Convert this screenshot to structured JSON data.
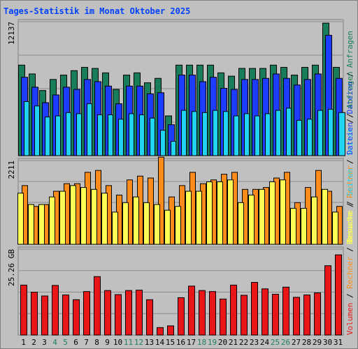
{
  "title": "Tages-Statistik im Monat Oktober 2025",
  "colors": {
    "background": "#c0c0c0",
    "title": "#0040ff",
    "anfragen": "#1a7d5a",
    "dateien": "#1e3cff",
    "seiten": "#22d4f4",
    "besuche": "#ffff55",
    "rechner": "#ff8c1a",
    "volumen": "#e81616",
    "weekday_label": "#000000",
    "weekend_label": "#208060"
  },
  "chart_data": [
    {
      "type": "bar",
      "panel": "top",
      "ymax_label": "12137",
      "ylim": [
        0,
        12137
      ],
      "right_labels": [
        {
          "text": "Seiten",
          "color": "#22d4f4"
        },
        {
          "text": " / ",
          "color": "#000000"
        },
        {
          "text": "Dateien",
          "color": "#1e3cff"
        },
        {
          "text": " / ",
          "color": "#000000"
        },
        {
          "text": "Anfragen",
          "color": "#1a7d5a"
        }
      ],
      "categories": [
        "1",
        "2",
        "3",
        "4",
        "5",
        "6",
        "7",
        "8",
        "9",
        "10",
        "11",
        "12",
        "13",
        "14",
        "15",
        "16",
        "17",
        "18",
        "19",
        "20",
        "21",
        "22",
        "23",
        "24",
        "25",
        "26",
        "27",
        "28",
        "29",
        "30",
        "31"
      ],
      "weekend": [
        "4",
        "5",
        "11",
        "12",
        "18",
        "19",
        "25",
        "26"
      ],
      "series": [
        {
          "name": "Anfragen",
          "values": [
            8200,
            7400,
            5900,
            6900,
            7300,
            7700,
            8000,
            7900,
            7500,
            6000,
            7300,
            7500,
            6600,
            7000,
            3600,
            8200,
            8200,
            8200,
            8200,
            7500,
            7200,
            7900,
            7900,
            7900,
            8200,
            8000,
            7300,
            8000,
            8200,
            12000,
            8000
          ]
        },
        {
          "name": "Dateien",
          "values": [
            7100,
            6200,
            4800,
            5500,
            6200,
            6000,
            6900,
            6700,
            6300,
            4700,
            6300,
            6300,
            5600,
            5700,
            2800,
            7300,
            7300,
            6700,
            7100,
            6100,
            6000,
            6900,
            6900,
            7000,
            7400,
            7000,
            6400,
            6900,
            7400,
            10900,
            7000
          ]
        },
        {
          "name": "Seiten",
          "values": [
            4900,
            4500,
            3500,
            3600,
            3900,
            3800,
            4700,
            3700,
            3700,
            3300,
            3800,
            3700,
            3400,
            2300,
            1300,
            4100,
            4000,
            3900,
            4100,
            4000,
            3600,
            3800,
            3600,
            3800,
            4100,
            4300,
            3200,
            3300,
            4100,
            4200,
            3900
          ]
        }
      ]
    },
    {
      "type": "bar",
      "panel": "middle",
      "ymax_label": "2211",
      "ylim": [
        0,
        2211
      ],
      "right_labels": [
        {
          "text": "Besuche",
          "color": "#ffff55"
        },
        {
          "text": " / ",
          "color": "#000000"
        },
        {
          "text": "Rechner",
          "color": "#ff8c1a"
        }
      ],
      "categories": [
        "1",
        "2",
        "3",
        "4",
        "5",
        "6",
        "7",
        "8",
        "9",
        "10",
        "11",
        "12",
        "13",
        "14",
        "15",
        "16",
        "17",
        "18",
        "19",
        "20",
        "21",
        "22",
        "23",
        "24",
        "25",
        "26",
        "27",
        "28",
        "29",
        "30",
        "31"
      ],
      "series": [
        {
          "name": "Rechner",
          "values": [
            1550,
            1000,
            1050,
            1400,
            1600,
            1600,
            1900,
            1950,
            1550,
            1300,
            1700,
            1800,
            1750,
            2300,
            1250,
            1550,
            1900,
            1600,
            1700,
            1850,
            1900,
            1450,
            1450,
            1500,
            1750,
            1900,
            1100,
            1500,
            1950,
            1400,
            1000
          ]
        },
        {
          "name": "Besuche",
          "values": [
            1350,
            1050,
            1050,
            1250,
            1400,
            1550,
            1500,
            1450,
            1350,
            850,
            1100,
            1250,
            1100,
            1050,
            900,
            1000,
            1400,
            1400,
            1650,
            1650,
            1700,
            1100,
            1300,
            1450,
            1650,
            1700,
            950,
            950,
            1250,
            1450,
            850
          ]
        }
      ]
    },
    {
      "type": "bar",
      "panel": "bottom",
      "ymax_label": "25.26 GB",
      "ylim": [
        0,
        25.26
      ],
      "right_labels": [
        {
          "text": "Volumen",
          "color": "#e81616"
        },
        {
          "text": " / ",
          "color": "#000000"
        },
        {
          "text": "Rechner",
          "color": "#ff8c1a"
        },
        {
          "text": " / ",
          "color": "#000000"
        },
        {
          "text": "Besuche",
          "color": "#ffff55"
        },
        {
          "text": " / ",
          "color": "#000000"
        },
        {
          "text": "Seiten",
          "color": "#22d4f4"
        },
        {
          "text": " / ",
          "color": "#000000"
        },
        {
          "text": "Dateien",
          "color": "#1e3cff"
        },
        {
          "text": " / ",
          "color": "#000000"
        },
        {
          "text": "Anfragen",
          "color": "#1a7d5a"
        }
      ],
      "categories": [
        "1",
        "2",
        "3",
        "4",
        "5",
        "6",
        "7",
        "8",
        "9",
        "10",
        "11",
        "12",
        "13",
        "14",
        "15",
        "16",
        "17",
        "18",
        "19",
        "20",
        "21",
        "22",
        "23",
        "24",
        "25",
        "26",
        "27",
        "28",
        "29",
        "30",
        "31"
      ],
      "series": [
        {
          "name": "Volumen",
          "values": [
            14.7,
            12.6,
            11.5,
            14.6,
            11.8,
            10.4,
            12.8,
            17.2,
            13.1,
            11.9,
            13.1,
            13.2,
            10.4,
            2.2,
            2.7,
            11.0,
            14.4,
            13.1,
            12.8,
            10.6,
            14.7,
            11.7,
            15.5,
            13.6,
            12.0,
            14.1,
            11.1,
            11.8,
            12.4,
            20.4,
            23.6
          ]
        }
      ]
    }
  ]
}
